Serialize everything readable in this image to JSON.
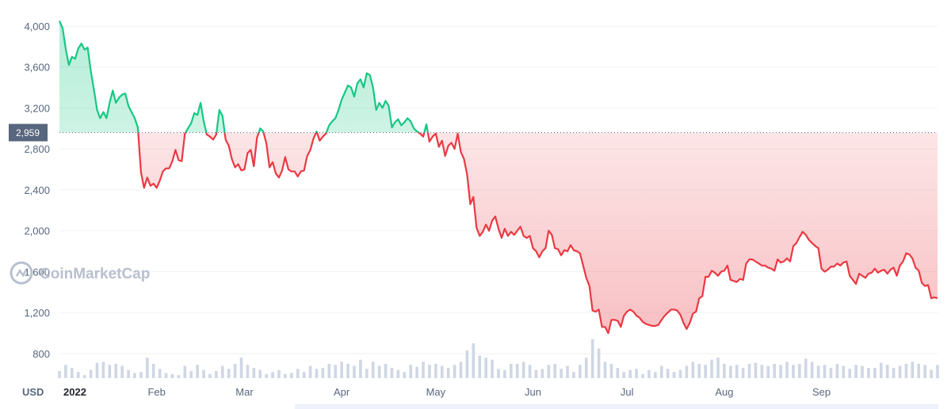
{
  "watermark": "CoinMarketCap",
  "chart_data": {
    "type": "line",
    "currency_label": "USD",
    "ylim": [
      560,
      4100
    ],
    "y_ticks": [
      800,
      1200,
      1600,
      2000,
      2400,
      2800,
      3200,
      3600,
      4000
    ],
    "y_tick_labels": [
      "800",
      "1,200",
      "1,600",
      "2,000",
      "2,400",
      "2,800",
      "3,200",
      "3,600",
      "4,000"
    ],
    "x_ticks": [
      {
        "day": 0,
        "label": "2022"
      },
      {
        "day": 31,
        "label": "Feb"
      },
      {
        "day": 59,
        "label": "Mar"
      },
      {
        "day": 90,
        "label": "Apr"
      },
      {
        "day": 120,
        "label": "May"
      },
      {
        "day": 151,
        "label": "Jun"
      },
      {
        "day": 181,
        "label": "Jul"
      },
      {
        "day": 212,
        "label": "Aug"
      },
      {
        "day": 243,
        "label": "Sep"
      }
    ],
    "reference_price": 2959,
    "reference_label": "2,959",
    "colors": {
      "up": "#16c784",
      "down": "#ea3943",
      "volume": "#cfd6e4",
      "grid": "#eff2f5",
      "reference": "#58667e"
    },
    "price_points": [
      [
        0,
        4050
      ],
      [
        1,
        3980
      ],
      [
        2,
        3780
      ],
      [
        3,
        3620
      ],
      [
        4,
        3700
      ],
      [
        5,
        3680
      ],
      [
        6,
        3780
      ],
      [
        7,
        3830
      ],
      [
        8,
        3770
      ],
      [
        9,
        3790
      ],
      [
        10,
        3560
      ],
      [
        11,
        3380
      ],
      [
        12,
        3180
      ],
      [
        13,
        3100
      ],
      [
        14,
        3160
      ],
      [
        15,
        3100
      ],
      [
        16,
        3250
      ],
      [
        17,
        3370
      ],
      [
        18,
        3250
      ],
      [
        19,
        3300
      ],
      [
        20,
        3330
      ],
      [
        21,
        3340
      ],
      [
        22,
        3220
      ],
      [
        23,
        3160
      ],
      [
        24,
        3100
      ],
      [
        25,
        3010
      ],
      [
        26,
        2570
      ],
      [
        27,
        2420
      ],
      [
        28,
        2520
      ],
      [
        29,
        2440
      ],
      [
        30,
        2460
      ],
      [
        31,
        2420
      ],
      [
        32,
        2490
      ],
      [
        33,
        2580
      ],
      [
        34,
        2610
      ],
      [
        35,
        2610
      ],
      [
        36,
        2680
      ],
      [
        37,
        2790
      ],
      [
        38,
        2690
      ],
      [
        39,
        2680
      ],
      [
        40,
        2950
      ],
      [
        41,
        3000
      ],
      [
        42,
        3050
      ],
      [
        43,
        3150
      ],
      [
        44,
        3130
      ],
      [
        45,
        3250
      ],
      [
        46,
        3070
      ],
      [
        47,
        2940
      ],
      [
        48,
        2920
      ],
      [
        49,
        2890
      ],
      [
        50,
        2940
      ],
      [
        51,
        3180
      ],
      [
        52,
        3120
      ],
      [
        53,
        2890
      ],
      [
        54,
        2830
      ],
      [
        55,
        2700
      ],
      [
        56,
        2620
      ],
      [
        57,
        2650
      ],
      [
        58,
        2590
      ],
      [
        59,
        2600
      ],
      [
        60,
        2760
      ],
      [
        61,
        2790
      ],
      [
        62,
        2630
      ],
      [
        63,
        2910
      ],
      [
        64,
        3000
      ],
      [
        65,
        2970
      ],
      [
        66,
        2850
      ],
      [
        67,
        2620
      ],
      [
        68,
        2670
      ],
      [
        69,
        2560
      ],
      [
        70,
        2520
      ],
      [
        71,
        2590
      ],
      [
        72,
        2720
      ],
      [
        73,
        2600
      ],
      [
        74,
        2580
      ],
      [
        75,
        2580
      ],
      [
        76,
        2530
      ],
      [
        77,
        2580
      ],
      [
        78,
        2590
      ],
      [
        79,
        2730
      ],
      [
        80,
        2790
      ],
      [
        81,
        2900
      ],
      [
        82,
        2970
      ],
      [
        83,
        2880
      ],
      [
        84,
        2920
      ],
      [
        85,
        2950
      ],
      [
        86,
        3030
      ],
      [
        87,
        3070
      ],
      [
        88,
        3100
      ],
      [
        89,
        3180
      ],
      [
        90,
        3280
      ],
      [
        91,
        3350
      ],
      [
        92,
        3420
      ],
      [
        93,
        3400
      ],
      [
        94,
        3310
      ],
      [
        95,
        3440
      ],
      [
        96,
        3480
      ],
      [
        97,
        3400
      ],
      [
        98,
        3540
      ],
      [
        99,
        3520
      ],
      [
        100,
        3400
      ],
      [
        101,
        3180
      ],
      [
        102,
        3250
      ],
      [
        103,
        3200
      ],
      [
        104,
        3270
      ],
      [
        105,
        3220
      ],
      [
        106,
        3010
      ],
      [
        107,
        3060
      ],
      [
        108,
        3090
      ],
      [
        109,
        3030
      ],
      [
        110,
        3060
      ],
      [
        111,
        3100
      ],
      [
        112,
        3070
      ],
      [
        113,
        3000
      ],
      [
        114,
        2970
      ],
      [
        115,
        2950
      ],
      [
        116,
        2920
      ],
      [
        117,
        3040
      ],
      [
        118,
        2870
      ],
      [
        119,
        2920
      ],
      [
        120,
        2950
      ],
      [
        121,
        2820
      ],
      [
        122,
        2880
      ],
      [
        123,
        2730
      ],
      [
        124,
        2830
      ],
      [
        125,
        2860
      ],
      [
        126,
        2800
      ],
      [
        127,
        2950
      ],
      [
        128,
        2770
      ],
      [
        129,
        2700
      ],
      [
        130,
        2550
      ],
      [
        131,
        2260
      ],
      [
        132,
        2330
      ],
      [
        133,
        2030
      ],
      [
        134,
        1950
      ],
      [
        135,
        1990
      ],
      [
        136,
        2060
      ],
      [
        137,
        2000
      ],
      [
        138,
        2100
      ],
      [
        139,
        2140
      ],
      [
        140,
        2020
      ],
      [
        141,
        1930
      ],
      [
        142,
        2020
      ],
      [
        143,
        1950
      ],
      [
        144,
        1990
      ],
      [
        145,
        1960
      ],
      [
        146,
        2000
      ],
      [
        147,
        2040
      ],
      [
        148,
        1950
      ],
      [
        149,
        1930
      ],
      [
        150,
        1950
      ],
      [
        151,
        1830
      ],
      [
        152,
        1800
      ],
      [
        153,
        1740
      ],
      [
        154,
        1800
      ],
      [
        155,
        1830
      ],
      [
        156,
        2000
      ],
      [
        157,
        1960
      ],
      [
        158,
        1830
      ],
      [
        159,
        1820
      ],
      [
        160,
        1760
      ],
      [
        161,
        1810
      ],
      [
        162,
        1800
      ],
      [
        163,
        1860
      ],
      [
        164,
        1810
      ],
      [
        165,
        1800
      ],
      [
        166,
        1780
      ],
      [
        167,
        1660
      ],
      [
        168,
        1540
      ],
      [
        169,
        1460
      ],
      [
        170,
        1220
      ],
      [
        171,
        1210
      ],
      [
        172,
        1230
      ],
      [
        173,
        1060
      ],
      [
        174,
        1060
      ],
      [
        175,
        1000
      ],
      [
        176,
        1130
      ],
      [
        177,
        1130
      ],
      [
        178,
        1120
      ],
      [
        179,
        1060
      ],
      [
        180,
        1170
      ],
      [
        181,
        1210
      ],
      [
        182,
        1230
      ],
      [
        183,
        1210
      ],
      [
        184,
        1170
      ],
      [
        185,
        1150
      ],
      [
        186,
        1110
      ],
      [
        187,
        1090
      ],
      [
        188,
        1080
      ],
      [
        189,
        1070
      ],
      [
        190,
        1070
      ],
      [
        191,
        1080
      ],
      [
        192,
        1130
      ],
      [
        193,
        1170
      ],
      [
        194,
        1200
      ],
      [
        195,
        1230
      ],
      [
        196,
        1230
      ],
      [
        197,
        1220
      ],
      [
        198,
        1180
      ],
      [
        199,
        1100
      ],
      [
        200,
        1040
      ],
      [
        201,
        1100
      ],
      [
        202,
        1190
      ],
      [
        203,
        1210
      ],
      [
        204,
        1340
      ],
      [
        205,
        1360
      ],
      [
        206,
        1550
      ],
      [
        207,
        1550
      ],
      [
        208,
        1610
      ],
      [
        209,
        1590
      ],
      [
        210,
        1560
      ],
      [
        211,
        1600
      ],
      [
        212,
        1610
      ],
      [
        213,
        1660
      ],
      [
        214,
        1520
      ],
      [
        215,
        1510
      ],
      [
        216,
        1500
      ],
      [
        217,
        1530
      ],
      [
        218,
        1520
      ],
      [
        219,
        1680
      ],
      [
        220,
        1720
      ],
      [
        221,
        1720
      ],
      [
        222,
        1700
      ],
      [
        223,
        1680
      ],
      [
        224,
        1660
      ],
      [
        225,
        1660
      ],
      [
        226,
        1640
      ],
      [
        227,
        1630
      ],
      [
        228,
        1610
      ],
      [
        229,
        1720
      ],
      [
        230,
        1690
      ],
      [
        231,
        1700
      ],
      [
        232,
        1730
      ],
      [
        233,
        1700
      ],
      [
        234,
        1850
      ],
      [
        235,
        1880
      ],
      [
        236,
        1940
      ],
      [
        237,
        1990
      ],
      [
        238,
        1960
      ],
      [
        239,
        1910
      ],
      [
        240,
        1880
      ],
      [
        241,
        1850
      ],
      [
        242,
        1830
      ],
      [
        243,
        1630
      ],
      [
        244,
        1600
      ],
      [
        245,
        1620
      ],
      [
        246,
        1650
      ],
      [
        247,
        1650
      ],
      [
        248,
        1680
      ],
      [
        249,
        1660
      ],
      [
        250,
        1690
      ],
      [
        251,
        1700
      ],
      [
        252,
        1560
      ],
      [
        253,
        1520
      ],
      [
        254,
        1480
      ],
      [
        255,
        1580
      ],
      [
        256,
        1560
      ],
      [
        257,
        1540
      ],
      [
        258,
        1580
      ],
      [
        259,
        1590
      ],
      [
        260,
        1630
      ],
      [
        261,
        1590
      ],
      [
        262,
        1610
      ],
      [
        263,
        1620
      ],
      [
        264,
        1580
      ],
      [
        265,
        1620
      ],
      [
        266,
        1640
      ],
      [
        267,
        1560
      ],
      [
        268,
        1660
      ],
      [
        269,
        1700
      ],
      [
        270,
        1780
      ],
      [
        271,
        1770
      ],
      [
        272,
        1730
      ],
      [
        273,
        1640
      ],
      [
        274,
        1610
      ],
      [
        275,
        1490
      ],
      [
        276,
        1460
      ],
      [
        277,
        1470
      ],
      [
        278,
        1340
      ],
      [
        279,
        1350
      ],
      [
        280,
        1340
      ]
    ],
    "volume_points": [
      [
        0,
        630
      ],
      [
        2,
        690
      ],
      [
        4,
        660
      ],
      [
        6,
        620
      ],
      [
        8,
        590
      ],
      [
        10,
        640
      ],
      [
        12,
        710
      ],
      [
        14,
        720
      ],
      [
        16,
        690
      ],
      [
        18,
        700
      ],
      [
        20,
        680
      ],
      [
        22,
        640
      ],
      [
        24,
        610
      ],
      [
        26,
        620
      ],
      [
        28,
        760
      ],
      [
        30,
        700
      ],
      [
        32,
        650
      ],
      [
        34,
        610
      ],
      [
        36,
        600
      ],
      [
        38,
        590
      ],
      [
        40,
        680
      ],
      [
        42,
        630
      ],
      [
        44,
        690
      ],
      [
        46,
        640
      ],
      [
        48,
        600
      ],
      [
        50,
        630
      ],
      [
        52,
        680
      ],
      [
        54,
        650
      ],
      [
        56,
        700
      ],
      [
        58,
        760
      ],
      [
        60,
        690
      ],
      [
        62,
        660
      ],
      [
        64,
        640
      ],
      [
        66,
        600
      ],
      [
        68,
        620
      ],
      [
        70,
        640
      ],
      [
        72,
        600
      ],
      [
        74,
        610
      ],
      [
        76,
        650
      ],
      [
        78,
        620
      ],
      [
        80,
        680
      ],
      [
        82,
        650
      ],
      [
        84,
        660
      ],
      [
        86,
        700
      ],
      [
        88,
        690
      ],
      [
        90,
        720
      ],
      [
        92,
        700
      ],
      [
        94,
        680
      ],
      [
        96,
        740
      ],
      [
        98,
        650
      ],
      [
        100,
        720
      ],
      [
        102,
        680
      ],
      [
        104,
        700
      ],
      [
        106,
        660
      ],
      [
        108,
        640
      ],
      [
        110,
        620
      ],
      [
        112,
        690
      ],
      [
        114,
        670
      ],
      [
        116,
        720
      ],
      [
        118,
        690
      ],
      [
        120,
        700
      ],
      [
        122,
        680
      ],
      [
        124,
        660
      ],
      [
        126,
        690
      ],
      [
        128,
        720
      ],
      [
        130,
        830
      ],
      [
        132,
        900
      ],
      [
        134,
        780
      ],
      [
        136,
        760
      ],
      [
        138,
        740
      ],
      [
        140,
        650
      ],
      [
        142,
        640
      ],
      [
        144,
        700
      ],
      [
        146,
        700
      ],
      [
        148,
        720
      ],
      [
        150,
        690
      ],
      [
        152,
        640
      ],
      [
        154,
        650
      ],
      [
        156,
        690
      ],
      [
        158,
        700
      ],
      [
        160,
        650
      ],
      [
        162,
        680
      ],
      [
        164,
        620
      ],
      [
        166,
        690
      ],
      [
        168,
        760
      ],
      [
        170,
        940
      ],
      [
        172,
        850
      ],
      [
        174,
        720
      ],
      [
        176,
        700
      ],
      [
        178,
        660
      ],
      [
        180,
        620
      ],
      [
        182,
        640
      ],
      [
        184,
        650
      ],
      [
        186,
        600
      ],
      [
        188,
        640
      ],
      [
        190,
        620
      ],
      [
        192,
        680
      ],
      [
        194,
        650
      ],
      [
        196,
        620
      ],
      [
        198,
        640
      ],
      [
        200,
        680
      ],
      [
        202,
        720
      ],
      [
        204,
        700
      ],
      [
        206,
        690
      ],
      [
        208,
        740
      ],
      [
        210,
        760
      ],
      [
        212,
        700
      ],
      [
        214,
        680
      ],
      [
        216,
        690
      ],
      [
        218,
        660
      ],
      [
        220,
        700
      ],
      [
        222,
        710
      ],
      [
        224,
        690
      ],
      [
        226,
        680
      ],
      [
        228,
        700
      ],
      [
        230,
        690
      ],
      [
        232,
        720
      ],
      [
        234,
        690
      ],
      [
        236,
        700
      ],
      [
        238,
        750
      ],
      [
        240,
        720
      ],
      [
        242,
        680
      ],
      [
        244,
        690
      ],
      [
        246,
        660
      ],
      [
        248,
        700
      ],
      [
        250,
        680
      ],
      [
        252,
        650
      ],
      [
        254,
        690
      ],
      [
        256,
        680
      ],
      [
        258,
        660
      ],
      [
        260,
        660
      ],
      [
        262,
        710
      ],
      [
        264,
        690
      ],
      [
        266,
        660
      ],
      [
        268,
        680
      ],
      [
        270,
        700
      ],
      [
        272,
        720
      ],
      [
        274,
        700
      ],
      [
        276,
        690
      ],
      [
        278,
        640
      ],
      [
        280,
        690
      ]
    ]
  }
}
